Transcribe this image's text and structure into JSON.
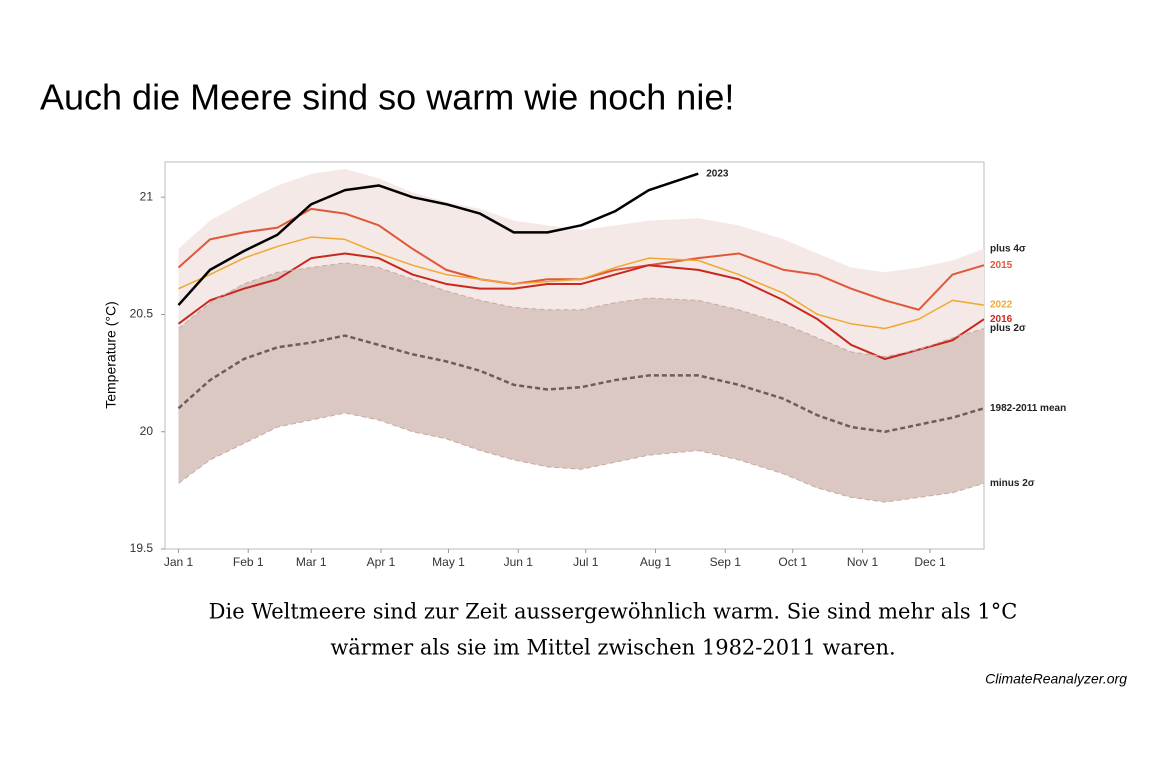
{
  "title": "Auch die Meere sind so warm wie noch nie!",
  "caption": [
    "Die Weltmeere sind zur Zeit aussergewöhnlich warm. Sie sind mehr als 1°C",
    "wärmer als sie im Mittel zwischen 1982-2011 waren."
  ],
  "credit": "ClimateReanalyzer.org",
  "chart_data": {
    "type": "line",
    "ylabel": "Temperature (°C)",
    "x": [
      1,
      15,
      30,
      45,
      60,
      75,
      90,
      105,
      120,
      135,
      150,
      165,
      180,
      195,
      210,
      232,
      250,
      270,
      285,
      300,
      315,
      330,
      345,
      359
    ],
    "xlim": [
      -5,
      359
    ],
    "xticks": [
      {
        "value": 1,
        "label": "Jan 1"
      },
      {
        "value": 32,
        "label": "Feb 1"
      },
      {
        "value": 60,
        "label": "Mar 1"
      },
      {
        "value": 91,
        "label": "Apr 1"
      },
      {
        "value": 121,
        "label": "May 1"
      },
      {
        "value": 152,
        "label": "Jun 1"
      },
      {
        "value": 182,
        "label": "Jul 1"
      },
      {
        "value": 213,
        "label": "Aug 1"
      },
      {
        "value": 244,
        "label": "Sep 1"
      },
      {
        "value": 274,
        "label": "Oct 1"
      },
      {
        "value": 305,
        "label": "Nov 1"
      },
      {
        "value": 335,
        "label": "Dec 1"
      }
    ],
    "ylim": [
      19.5,
      21.15
    ],
    "yticks": [
      19.5,
      20,
      20.5,
      21
    ],
    "series": [
      {
        "name": "plus 4σ",
        "color": "#f4e9e6",
        "width": 0,
        "fill_to": 4,
        "label_color": "#222",
        "values": [
          20.78,
          20.9,
          20.98,
          21.05,
          21.1,
          21.12,
          21.08,
          21.02,
          20.98,
          20.95,
          20.9,
          20.88,
          20.86,
          20.88,
          20.9,
          20.91,
          20.88,
          20.82,
          20.76,
          20.7,
          20.68,
          20.7,
          20.73,
          20.78
        ]
      },
      {
        "name": "2015",
        "color": "#e0583a",
        "width": 2,
        "label_color": "#e0583a",
        "values": [
          20.7,
          20.82,
          20.85,
          20.87,
          20.95,
          20.93,
          20.88,
          20.78,
          20.69,
          20.65,
          20.63,
          20.65,
          20.65,
          20.69,
          20.71,
          20.74,
          20.76,
          20.69,
          20.67,
          20.61,
          20.56,
          20.52,
          20.67,
          20.71
        ]
      },
      {
        "name": "2022",
        "color": "#f0a830",
        "width": 1.5,
        "label_color": "#f0a830",
        "values": [
          20.61,
          20.67,
          20.74,
          20.79,
          20.83,
          20.82,
          20.76,
          20.71,
          20.67,
          20.65,
          20.63,
          20.64,
          20.65,
          20.7,
          20.74,
          20.73,
          20.67,
          20.59,
          20.5,
          20.46,
          20.44,
          20.48,
          20.56,
          20.54
        ]
      },
      {
        "name": "2016",
        "color": "#c8281e",
        "width": 2,
        "label_color": "#c8281e",
        "values": [
          20.46,
          20.56,
          20.61,
          20.65,
          20.74,
          20.76,
          20.74,
          20.67,
          20.63,
          20.61,
          20.61,
          20.63,
          20.63,
          20.67,
          20.71,
          20.69,
          20.65,
          20.56,
          20.48,
          20.37,
          20.31,
          20.35,
          20.39,
          20.48
        ]
      },
      {
        "name": "plus 2σ",
        "color": "#c9a9a2",
        "width": 1,
        "dash": true,
        "fill_to": 6,
        "fill": "#dbc8c3",
        "label_color": "#222",
        "values": [
          20.44,
          20.55,
          20.63,
          20.68,
          20.7,
          20.72,
          20.7,
          20.65,
          20.6,
          20.56,
          20.53,
          20.52,
          20.52,
          20.55,
          20.57,
          20.56,
          20.52,
          20.46,
          20.4,
          20.34,
          20.32,
          20.35,
          20.4,
          20.44
        ]
      },
      {
        "name": "1982-2011 mean",
        "color": "#6b5d5a",
        "width": 2.5,
        "dash": true,
        "label_color": "#222",
        "values": [
          20.1,
          20.22,
          20.31,
          20.36,
          20.38,
          20.41,
          20.37,
          20.33,
          20.3,
          20.26,
          20.2,
          20.18,
          20.19,
          20.22,
          20.24,
          20.24,
          20.2,
          20.14,
          20.07,
          20.02,
          20.0,
          20.03,
          20.06,
          20.1
        ]
      },
      {
        "name": "minus 2σ",
        "color": "#c9a9a2",
        "width": 1,
        "dash": true,
        "label_color": "#222",
        "values": [
          19.78,
          19.88,
          19.95,
          20.02,
          20.05,
          20.08,
          20.05,
          20.0,
          19.97,
          19.92,
          19.88,
          19.85,
          19.84,
          19.87,
          19.9,
          19.92,
          19.88,
          19.82,
          19.76,
          19.72,
          19.7,
          19.72,
          19.74,
          19.78
        ]
      },
      {
        "name": "2023",
        "color": "#000000",
        "width": 2.5,
        "label_color": "#222",
        "values": [
          20.54,
          20.69,
          20.77,
          20.84,
          20.97,
          21.03,
          21.05,
          21.0,
          20.97,
          20.93,
          20.85,
          20.85,
          20.88,
          20.94,
          21.03,
          21.1,
          null,
          null,
          null,
          null,
          null,
          null,
          null,
          null
        ]
      }
    ]
  }
}
